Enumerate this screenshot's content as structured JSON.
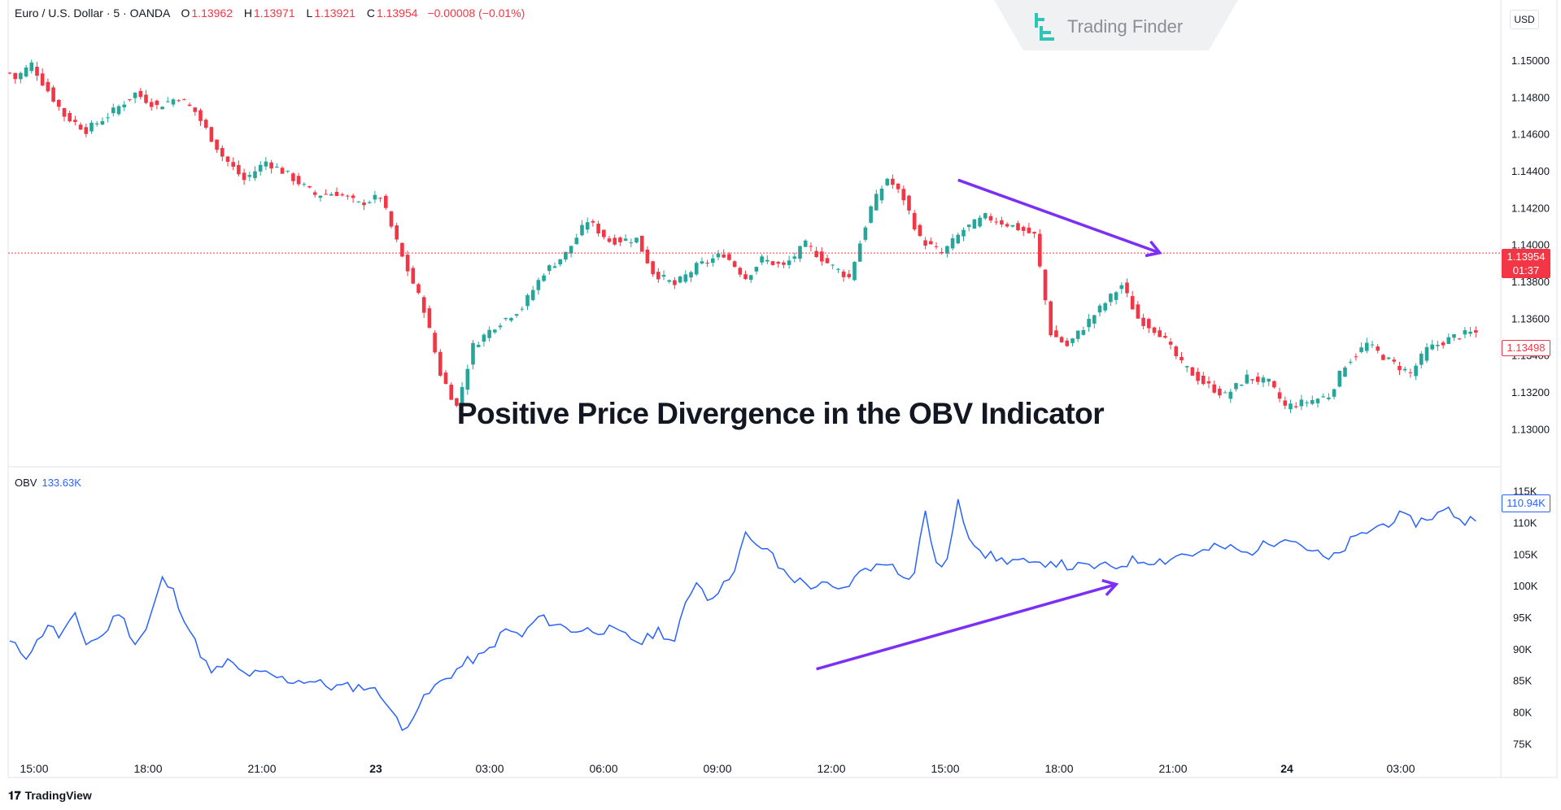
{
  "legend": {
    "symbol": "Euro / U.S. Dollar · 5 · OANDA",
    "open_label": "O",
    "open": "1.13962",
    "high_label": "H",
    "high": "1.13971",
    "low_label": "L",
    "low": "1.13921",
    "close_label": "C",
    "close": "1.13954",
    "change": "−0.00008 (−0.01%)"
  },
  "obv_legend": {
    "name": "OBV",
    "value": "133.63K"
  },
  "watermark": {
    "brand": "Trading Finder"
  },
  "currency_button": "USD",
  "price_badge": {
    "price": "1.13954",
    "countdown": "01:37"
  },
  "secondary_price_badge": "1.13498",
  "obv_badge": "110.94K",
  "headline": "Positive Price Divergence in the OBV Indicator",
  "footer": {
    "brand": "TradingView"
  },
  "colors": {
    "up": "#26a69a",
    "down": "#f23645",
    "obv_line": "#2962ff",
    "arrow": "#7b2ff7",
    "current_price_line": "#f23645"
  },
  "chart_data": [
    {
      "type": "candlestick",
      "symbol": "EUR/USD",
      "timeframe": "5",
      "y_ticks": [
        "1.15000",
        "1.14800",
        "1.14600",
        "1.14400",
        "1.14200",
        "1.14000",
        "1.13800",
        "1.13600",
        "1.13400",
        "1.13200",
        "1.13000"
      ],
      "ylim": [
        1.129,
        1.1515
      ],
      "x_ticks": [
        "15:00",
        "18:00",
        "21:00",
        "23",
        "03:00",
        "06:00",
        "09:00",
        "12:00",
        "15:00",
        "18:00",
        "21:00",
        "24",
        "03:00"
      ],
      "bold_x_ticks": [
        "23",
        "24"
      ],
      "current_price": 1.13954,
      "anchors": [
        [
          0,
          1.1493
        ],
        [
          1,
          1.149
        ],
        [
          4,
          1.1498
        ],
        [
          6,
          1.1488
        ],
        [
          10,
          1.147
        ],
        [
          14,
          1.1462
        ],
        [
          18,
          1.147
        ],
        [
          23,
          1.1482
        ],
        [
          27,
          1.1475
        ],
        [
          31,
          1.148
        ],
        [
          34,
          1.1472
        ],
        [
          39,
          1.1448
        ],
        [
          43,
          1.1435
        ],
        [
          47,
          1.1445
        ],
        [
          51,
          1.1438
        ],
        [
          56,
          1.1427
        ],
        [
          60,
          1.1428
        ],
        [
          64,
          1.1422
        ],
        [
          68,
          1.1426
        ],
        [
          72,
          1.1393
        ],
        [
          76,
          1.1365
        ],
        [
          79,
          1.133
        ],
        [
          82,
          1.1312
        ],
        [
          85,
          1.1345
        ],
        [
          89,
          1.1356
        ],
        [
          94,
          1.1366
        ],
        [
          98,
          1.1385
        ],
        [
          102,
          1.1395
        ],
        [
          106,
          1.1413
        ],
        [
          110,
          1.1402
        ],
        [
          115,
          1.1403
        ],
        [
          118,
          1.1385
        ],
        [
          122,
          1.1378
        ],
        [
          126,
          1.1388
        ],
        [
          131,
          1.1395
        ],
        [
          135,
          1.1382
        ],
        [
          138,
          1.1392
        ],
        [
          142,
          1.1388
        ],
        [
          146,
          1.14
        ],
        [
          150,
          1.139
        ],
        [
          154,
          1.1382
        ],
        [
          158,
          1.142
        ],
        [
          161,
          1.1436
        ],
        [
          164,
          1.1425
        ],
        [
          167,
          1.1403
        ],
        [
          171,
          1.1395
        ],
        [
          175,
          1.1408
        ],
        [
          179,
          1.1415
        ],
        [
          184,
          1.141
        ],
        [
          188,
          1.1405
        ],
        [
          191,
          1.1352
        ],
        [
          194,
          1.1345
        ],
        [
          199,
          1.1362
        ],
        [
          204,
          1.1378
        ],
        [
          207,
          1.136
        ],
        [
          211,
          1.1352
        ],
        [
          215,
          1.1335
        ],
        [
          219,
          1.1325
        ],
        [
          223,
          1.1318
        ],
        [
          227,
          1.1328
        ],
        [
          231,
          1.1325
        ],
        [
          234,
          1.1312
        ],
        [
          237,
          1.1314
        ],
        [
          242,
          1.1318
        ],
        [
          245,
          1.1335
        ],
        [
          249,
          1.1346
        ],
        [
          253,
          1.1337
        ],
        [
          257,
          1.133
        ],
        [
          260,
          1.1343
        ],
        [
          265,
          1.135
        ],
        [
          268,
          1.1352
        ]
      ]
    },
    {
      "type": "line",
      "name": "OBV",
      "y_ticks": [
        "115K",
        "110K",
        "105K",
        "100K",
        "95K",
        "90K",
        "85K",
        "80K",
        "75K"
      ],
      "ylim": [
        73,
        117
      ],
      "current_value": 110.94,
      "anchors": [
        [
          0,
          91
        ],
        [
          3,
          89
        ],
        [
          5,
          91
        ],
        [
          7,
          94
        ],
        [
          9,
          92
        ],
        [
          12,
          95
        ],
        [
          14,
          91
        ],
        [
          17,
          92
        ],
        [
          20,
          96
        ],
        [
          23,
          91
        ],
        [
          25,
          93
        ],
        [
          28,
          101
        ],
        [
          30,
          99
        ],
        [
          34,
          91
        ],
        [
          37,
          86
        ],
        [
          40,
          88
        ],
        [
          43,
          86
        ],
        [
          47,
          86
        ],
        [
          51,
          85
        ],
        [
          55,
          85
        ],
        [
          59,
          84
        ],
        [
          63,
          84
        ],
        [
          66,
          84
        ],
        [
          69,
          82
        ],
        [
          72,
          77
        ],
        [
          75,
          81
        ],
        [
          78,
          84
        ],
        [
          81,
          86
        ],
        [
          84,
          88
        ],
        [
          87,
          89
        ],
        [
          91,
          93
        ],
        [
          94,
          92
        ],
        [
          97,
          95
        ],
        [
          100,
          94
        ],
        [
          103,
          93
        ],
        [
          107,
          93
        ],
        [
          110,
          93
        ],
        [
          113,
          92
        ],
        [
          116,
          91
        ],
        [
          119,
          93
        ],
        [
          122,
          91
        ],
        [
          124,
          97
        ],
        [
          126,
          101
        ],
        [
          128,
          98
        ],
        [
          131,
          100
        ],
        [
          133,
          103
        ],
        [
          135,
          108
        ],
        [
          137,
          106
        ],
        [
          139,
          106
        ],
        [
          141,
          103
        ],
        [
          144,
          101
        ],
        [
          147,
          100
        ],
        [
          150,
          100
        ],
        [
          152,
          99
        ],
        [
          155,
          101
        ],
        [
          157,
          103
        ],
        [
          159,
          103
        ],
        [
          162,
          104
        ],
        [
          164,
          101
        ],
        [
          166,
          102
        ],
        [
          168,
          112
        ],
        [
          170,
          103
        ],
        [
          172,
          104
        ],
        [
          174,
          113
        ],
        [
          176,
          108
        ],
        [
          179,
          105
        ],
        [
          182,
          104
        ],
        [
          185,
          104
        ],
        [
          188,
          103
        ],
        [
          191,
          104
        ],
        [
          194,
          103
        ],
        [
          197,
          103
        ],
        [
          200,
          103
        ],
        [
          203,
          103
        ],
        [
          206,
          104
        ],
        [
          209,
          104
        ],
        [
          212,
          104
        ],
        [
          215,
          105
        ],
        [
          218,
          105
        ],
        [
          221,
          106
        ],
        [
          224,
          106
        ],
        [
          227,
          105
        ],
        [
          229,
          106
        ],
        [
          232,
          107
        ],
        [
          234,
          108
        ],
        [
          236,
          107
        ],
        [
          238,
          106
        ],
        [
          240,
          105
        ],
        [
          242,
          104
        ],
        [
          244,
          105
        ],
        [
          246,
          107
        ],
        [
          248,
          108
        ],
        [
          250,
          109
        ],
        [
          253,
          110
        ],
        [
          255,
          111
        ],
        [
          258,
          110
        ],
        [
          261,
          111
        ],
        [
          264,
          112
        ],
        [
          267,
          110
        ],
        [
          269,
          111
        ]
      ]
    }
  ],
  "annotations": [
    {
      "type": "arrow",
      "panel": "price",
      "direction": "down",
      "from_index": 174,
      "from_price": 1.1435,
      "to_index": 211,
      "to_price": 1.13955
    },
    {
      "type": "arrow",
      "panel": "obv",
      "direction": "up",
      "from_index": 148,
      "from_value": 86.8,
      "to_index": 203,
      "to_value": 100.2
    }
  ]
}
